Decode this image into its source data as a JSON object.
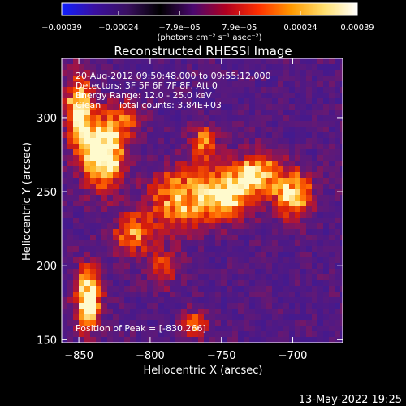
{
  "chart_data": {
    "type": "heatmap",
    "title": "Reconstructed RHESSI Image",
    "xlabel": "Heliocentric X (arcsec)",
    "ylabel": "Heliocentric Y (arcsec)",
    "xlim": [
      -862,
      -665
    ],
    "ylim": [
      148,
      340
    ],
    "x_ticks": [
      {
        "value": -850,
        "label": "−850"
      },
      {
        "value": -800,
        "label": "−800"
      },
      {
        "value": -750,
        "label": "−750"
      },
      {
        "value": -700,
        "label": "−700"
      }
    ],
    "y_ticks": [
      {
        "value": 150,
        "label": "150"
      },
      {
        "value": 200,
        "label": "200"
      },
      {
        "value": 250,
        "label": "250"
      },
      {
        "value": 300,
        "label": "300"
      }
    ],
    "colorbar": {
      "range": [
        -0.00039,
        0.00039
      ],
      "tick_labels": [
        "−0.00039",
        "−0.00024",
        "−7.9e−05",
        "7.9e−05",
        "0.00024",
        "0.00039"
      ],
      "unit_label": "(photons cm⁻² s⁻¹ asec⁻²)",
      "colors": [
        "#1020ff",
        "#3a10a0",
        "#3a1060",
        "#000000",
        "#4a0870",
        "#b00020",
        "#ff3000",
        "#ff9a00",
        "#ffe070",
        "#ffffff"
      ]
    },
    "annotations": [
      "20-Aug-2012 09:50:48.000 to 09:55:12.000",
      "Detectors: 3F 5F 6F 7F 8F, Att 0",
      "Energy Range: 12.0 - 25.0 keV",
      "Clean      Total counts: 3.84E+03"
    ],
    "peak_label": "Position of Peak = [-830,266]",
    "peak_position": [
      -830,
      266
    ],
    "hot_regions": [
      {
        "x": -833,
        "y": 278,
        "sx": 10,
        "sy": 16,
        "amp": 1.0
      },
      {
        "x": -850,
        "y": 305,
        "sx": 6,
        "sy": 16,
        "amp": 0.78
      },
      {
        "x": -843,
        "y": 178,
        "sx": 6,
        "sy": 14,
        "amp": 0.92
      },
      {
        "x": -780,
        "y": 245,
        "sx": 14,
        "sy": 14,
        "amp": 0.62
      },
      {
        "x": -748,
        "y": 248,
        "sx": 12,
        "sy": 11,
        "amp": 0.82
      },
      {
        "x": -725,
        "y": 262,
        "sx": 11,
        "sy": 10,
        "amp": 0.68
      },
      {
        "x": -700,
        "y": 248,
        "sx": 9,
        "sy": 11,
        "amp": 0.7
      },
      {
        "x": -762,
        "y": 282,
        "sx": 7,
        "sy": 8,
        "amp": 0.52
      },
      {
        "x": -812,
        "y": 222,
        "sx": 10,
        "sy": 10,
        "amp": 0.5
      },
      {
        "x": -790,
        "y": 200,
        "sx": 7,
        "sy": 9,
        "amp": 0.36
      },
      {
        "x": -768,
        "y": 160,
        "sx": 6,
        "sy": 7,
        "amp": 0.42
      },
      {
        "x": -815,
        "y": 300,
        "sx": 7,
        "sy": 8,
        "amp": 0.32
      }
    ],
    "grid": false
  },
  "footer": {
    "timestamp": "13-May-2022 19:25"
  }
}
